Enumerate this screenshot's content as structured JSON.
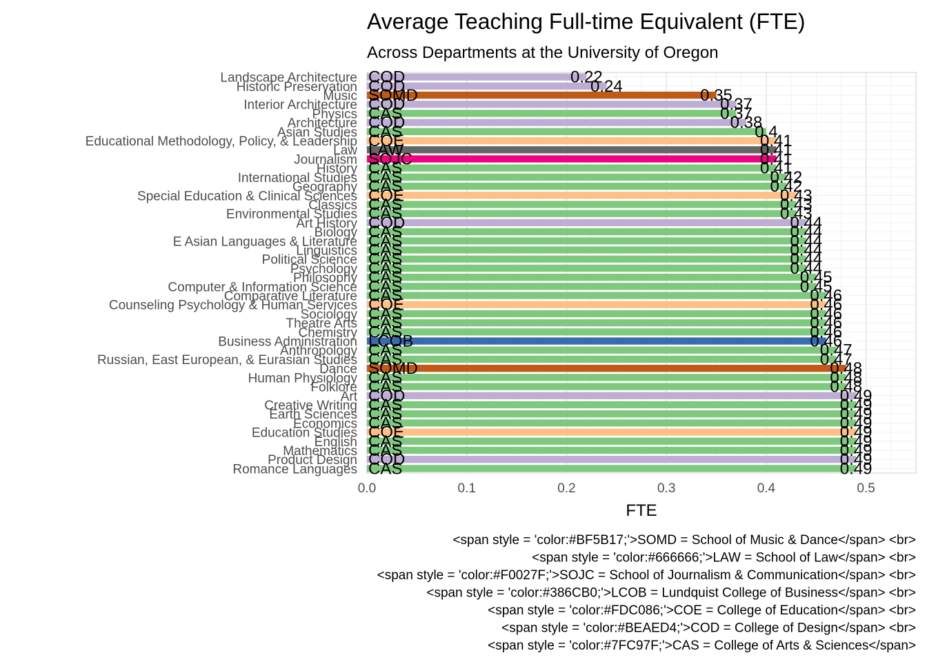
{
  "chart_data": {
    "type": "bar",
    "orientation": "horizontal",
    "title": "Average Teaching Full-time Equivalent (FTE)",
    "subtitle": "Across Departments at the University of Oregon",
    "xlabel": "FTE",
    "ylabel": "",
    "xlim": [
      0,
      0.55
    ],
    "xticks": [
      0.0,
      0.1,
      0.2,
      0.3,
      0.4,
      0.5
    ],
    "xtick_labels": [
      "0.0",
      "0.1",
      "0.2",
      "0.3",
      "0.4",
      "0.5"
    ],
    "grid": true,
    "legend": "none",
    "college_colors": {
      "SOMD": "#BF5B17",
      "LAW": "#666666",
      "SOJC": "#F0027F",
      "LCOB": "#386CB0",
      "COE": "#FDC086",
      "COD": "#BEAED4",
      "CAS": "#7FC97F"
    },
    "bars": [
      {
        "department": "Landscape Architecture",
        "college": "COD",
        "value": 0.22,
        "value_label": "0.22"
      },
      {
        "department": "Historic Preservation",
        "college": "COD",
        "value": 0.24,
        "value_label": "0.24"
      },
      {
        "department": "Music",
        "college": "SOMD",
        "value": 0.35,
        "value_label": "0.35"
      },
      {
        "department": "Interior Architecture",
        "college": "COD",
        "value": 0.37,
        "value_label": "0.37"
      },
      {
        "department": "Physics",
        "college": "CAS",
        "value": 0.37,
        "value_label": "0.37"
      },
      {
        "department": "Architecture",
        "college": "COD",
        "value": 0.38,
        "value_label": "0.38"
      },
      {
        "department": "Asian Studies",
        "college": "CAS",
        "value": 0.4,
        "value_label": "0.4"
      },
      {
        "department": "Educational Methodology, Policy, & Leadership",
        "college": "COE",
        "value": 0.41,
        "value_label": "0.41"
      },
      {
        "department": "Law",
        "college": "LAW",
        "value": 0.41,
        "value_label": "0.41"
      },
      {
        "department": "Journalism",
        "college": "SOJC",
        "value": 0.41,
        "value_label": "0.41"
      },
      {
        "department": "History",
        "college": "CAS",
        "value": 0.41,
        "value_label": "0.41"
      },
      {
        "department": "International Studies",
        "college": "CAS",
        "value": 0.42,
        "value_label": "0.42"
      },
      {
        "department": "Geography",
        "college": "CAS",
        "value": 0.42,
        "value_label": "0.42"
      },
      {
        "department": "Special Education & Clinical Sciences",
        "college": "COE",
        "value": 0.43,
        "value_label": "0.43"
      },
      {
        "department": "Classics",
        "college": "CAS",
        "value": 0.43,
        "value_label": "0.43"
      },
      {
        "department": "Environmental Studies",
        "college": "CAS",
        "value": 0.43,
        "value_label": "0.43"
      },
      {
        "department": "Art History",
        "college": "COD",
        "value": 0.44,
        "value_label": "0.44"
      },
      {
        "department": "Biology",
        "college": "CAS",
        "value": 0.44,
        "value_label": "0.44"
      },
      {
        "department": "E Asian Languages & Literature",
        "college": "CAS",
        "value": 0.44,
        "value_label": "0.44"
      },
      {
        "department": "Linguistics",
        "college": "CAS",
        "value": 0.44,
        "value_label": "0.44"
      },
      {
        "department": "Political Science",
        "college": "CAS",
        "value": 0.44,
        "value_label": "0.44"
      },
      {
        "department": "Psychology",
        "college": "CAS",
        "value": 0.44,
        "value_label": "0.44"
      },
      {
        "department": "Philosophy",
        "college": "CAS",
        "value": 0.45,
        "value_label": "0.45"
      },
      {
        "department": "Computer & Information Science",
        "college": "CAS",
        "value": 0.45,
        "value_label": "0.45"
      },
      {
        "department": "Comparative Literature",
        "college": "CAS",
        "value": 0.46,
        "value_label": "0.46"
      },
      {
        "department": "Counseling Psychology & Human Services",
        "college": "COE",
        "value": 0.46,
        "value_label": "0.46"
      },
      {
        "department": "Sociology",
        "college": "CAS",
        "value": 0.46,
        "value_label": "0.46"
      },
      {
        "department": "Theatre Arts",
        "college": "CAS",
        "value": 0.46,
        "value_label": "0.46"
      },
      {
        "department": "Chemistry",
        "college": "CAS",
        "value": 0.46,
        "value_label": "0.46"
      },
      {
        "department": "Business Administration",
        "college": "LCOB",
        "value": 0.46,
        "value_label": "0.46"
      },
      {
        "department": "Anthropology",
        "college": "CAS",
        "value": 0.47,
        "value_label": "0.47"
      },
      {
        "department": "Russian, East European, & Eurasian Studies",
        "college": "CAS",
        "value": 0.47,
        "value_label": "0.47"
      },
      {
        "department": "Dance",
        "college": "SOMD",
        "value": 0.48,
        "value_label": "0.48"
      },
      {
        "department": "Human Physiology",
        "college": "CAS",
        "value": 0.48,
        "value_label": "0.48"
      },
      {
        "department": "Folklore",
        "college": "CAS",
        "value": 0.48,
        "value_label": "0.48"
      },
      {
        "department": "Art",
        "college": "COD",
        "value": 0.49,
        "value_label": "0.49"
      },
      {
        "department": "Creative Writing",
        "college": "CAS",
        "value": 0.49,
        "value_label": "0.49"
      },
      {
        "department": "Earth Sciences",
        "college": "CAS",
        "value": 0.49,
        "value_label": "0.49"
      },
      {
        "department": "Economics",
        "college": "CAS",
        "value": 0.49,
        "value_label": "0.49"
      },
      {
        "department": "Education Studies",
        "college": "COE",
        "value": 0.49,
        "value_label": "0.49"
      },
      {
        "department": "English",
        "college": "CAS",
        "value": 0.49,
        "value_label": "0.49"
      },
      {
        "department": "Mathematics",
        "college": "CAS",
        "value": 0.49,
        "value_label": "0.49"
      },
      {
        "department": "Product Design",
        "college": "COD",
        "value": 0.49,
        "value_label": "0.49"
      },
      {
        "department": "Romance Languages",
        "college": "CAS",
        "value": 0.49,
        "value_label": "0.49"
      }
    ],
    "caption_lines": [
      "<span style = 'color:#BF5B17;'>SOMD = School of Music & Dance</span> <br>",
      "<span style = 'color:#666666;'>LAW = School of Law</span>  <br>",
      "<span style = 'color:#F0027F;'>SOJC = School of Journalism & Communication</span> <br>",
      "<span style = 'color:#386CB0;'>LCOB = Lundquist College of Business</span> <br>",
      "<span style = 'color:#FDC086;'>COE = College of Education</span> <br>",
      "<span style = 'color:#BEAED4;'>COD = College of Design</span> <br>",
      "<span style = 'color:#7FC97F;'>CAS = College of Arts & Sciences</span>"
    ]
  }
}
